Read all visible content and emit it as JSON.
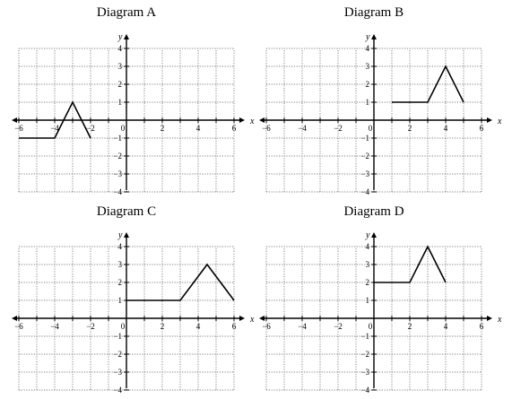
{
  "diagrams": [
    {
      "title": "Diagram A",
      "x_label": "x",
      "y_label": "y",
      "x_range": [
        -6,
        6
      ],
      "y_range": [
        -4,
        4
      ],
      "x_ticks": [
        "−6",
        "−4",
        "−2",
        "0",
        "2",
        "4",
        "6"
      ],
      "y_ticks": [
        "4",
        "3",
        "2",
        "1",
        "−1",
        "−2",
        "−3",
        "−4"
      ],
      "points": [
        [
          -6,
          -1
        ],
        [
          -4,
          -1
        ],
        [
          -3,
          1
        ],
        [
          -2,
          -1
        ]
      ]
    },
    {
      "title": "Diagram B",
      "x_label": "x",
      "y_label": "y",
      "x_range": [
        -6,
        6
      ],
      "y_range": [
        -4,
        4
      ],
      "x_ticks": [
        "−6",
        "−4",
        "−2",
        "0",
        "2",
        "4",
        "6"
      ],
      "y_ticks": [
        "4",
        "3",
        "2",
        "1",
        "−1",
        "−2",
        "−3",
        "−4"
      ],
      "points": [
        [
          1,
          1
        ],
        [
          3,
          1
        ],
        [
          4,
          3
        ],
        [
          5,
          1
        ]
      ]
    },
    {
      "title": "Diagram C",
      "x_label": "x",
      "y_label": "y",
      "x_range": [
        -6,
        6
      ],
      "y_range": [
        -4,
        4
      ],
      "x_ticks": [
        "−6",
        "−4",
        "−2",
        "0",
        "2",
        "4",
        "6"
      ],
      "y_ticks": [
        "4",
        "3",
        "2",
        "1",
        "−1",
        "−2",
        "−3",
        "−4"
      ],
      "points": [
        [
          0,
          1
        ],
        [
          3,
          1
        ],
        [
          4.5,
          3
        ],
        [
          6,
          1
        ]
      ]
    },
    {
      "title": "Diagram D",
      "x_label": "x",
      "y_label": "y",
      "x_range": [
        -6,
        6
      ],
      "y_range": [
        -4,
        4
      ],
      "x_ticks": [
        "−6",
        "−4",
        "−2",
        "0",
        "2",
        "4",
        "6"
      ],
      "y_ticks": [
        "4",
        "3",
        "2",
        "1",
        "−1",
        "−2",
        "−3",
        "−4"
      ],
      "points": [
        [
          0,
          2
        ],
        [
          2,
          2
        ],
        [
          3,
          4
        ],
        [
          4,
          2
        ]
      ]
    }
  ]
}
